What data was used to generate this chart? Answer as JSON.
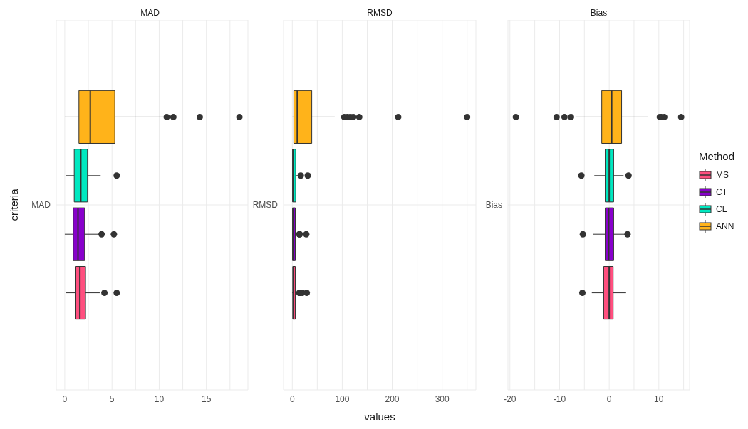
{
  "chart_data": [
    {
      "type": "box",
      "orientation": "horizontal",
      "title": "MAD",
      "ylabel": "criteria",
      "categories": [
        "MAD"
      ],
      "xlim": [
        -0.9,
        19.4
      ],
      "xticks": [
        0,
        {
          "value": 2.5,
          "label": null
        },
        5,
        {
          "value": 7.5,
          "label": null
        },
        10,
        {
          "value": 12.5,
          "label": null
        },
        15,
        {
          "value": 17.5,
          "label": null
        }
      ],
      "grid": true,
      "series": [
        {
          "color": "#ff4f7f",
          "boxes": [
            {
              "low": 0.1,
              "q1": 1.1,
              "median": 1.6,
              "q3": 2.2,
              "high": 3.7,
              "outliers": [
                4.2,
                5.5
              ]
            }
          ]
        },
        {
          "color": "#8800cc",
          "boxes": [
            {
              "low": 0,
              "q1": 0.9,
              "median": 1.4,
              "q3": 2.1,
              "high": 3.8,
              "outliers": [
                3.9,
                5.2
              ]
            }
          ]
        },
        {
          "color": "#00e8c0",
          "boxes": [
            {
              "low": 0.1,
              "q1": 1,
              "median": 1.7,
              "q3": 2.4,
              "high": 3.8,
              "outliers": [
                5.5
              ]
            }
          ]
        },
        {
          "color": "#ffb31a",
          "boxes": [
            {
              "low": 0,
              "q1": 1.5,
              "median": 2.7,
              "q3": 5.3,
              "high": 10.5,
              "outliers": [
                10.8,
                11.5,
                14.3,
                18.5
              ]
            }
          ]
        }
      ]
    },
    {
      "type": "box",
      "orientation": "horizontal",
      "title": "RMSD",
      "xlabel": "values",
      "categories": [
        "RMSD"
      ],
      "xlim": [
        -17.5,
        367.5
      ],
      "xticks": [
        0,
        {
          "value": 50,
          "label": null
        },
        100,
        {
          "value": 150,
          "label": null
        },
        200,
        {
          "value": 250,
          "label": null
        },
        300,
        {
          "value": 350,
          "label": null
        }
      ],
      "grid": true,
      "series": [
        {
          "color": "#ff4f7f",
          "boxes": [
            {
              "low": 0,
              "q1": 1,
              "median": 2,
              "q3": 6,
              "high": 10,
              "outliers": [
                14,
                16,
                20,
                29
              ]
            }
          ]
        },
        {
          "color": "#8800cc",
          "boxes": [
            {
              "low": 0,
              "q1": 0.5,
              "median": 2,
              "q3": 6,
              "high": 9,
              "outliers": [
                14,
                15,
                28
              ]
            }
          ]
        },
        {
          "color": "#00e8c0",
          "boxes": [
            {
              "low": 0,
              "q1": 0.5,
              "median": 2,
              "q3": 7,
              "high": 11,
              "outliers": [
                17,
                31
              ]
            }
          ]
        },
        {
          "color": "#ffb31a",
          "boxes": [
            {
              "low": 0,
              "q1": 3,
              "median": 10,
              "q3": 39,
              "high": 85,
              "outliers": [
                104,
                110,
                116,
                122,
                134,
                212,
                350
              ]
            }
          ]
        }
      ]
    },
    {
      "type": "box",
      "orientation": "horizontal",
      "title": "Bias",
      "categories": [
        "Bias"
      ],
      "xlim": [
        -20.4,
        16.2
      ],
      "xticks": [
        -20,
        {
          "value": -15,
          "label": null
        },
        -10,
        {
          "value": -5,
          "label": null
        },
        0,
        {
          "value": 5,
          "label": null
        },
        10,
        {
          "value": 15,
          "label": null
        }
      ],
      "grid": true,
      "legend": "right",
      "legend_title": "Method",
      "series": [
        {
          "name": "MS",
          "color": "#ff4f7f",
          "boxes": [
            {
              "low": -3.5,
              "q1": -1.1,
              "median": 0,
              "q3": 0.8,
              "high": 3.4,
              "outliers": [
                -5.4
              ]
            }
          ]
        },
        {
          "name": "CT",
          "color": "#8800cc",
          "boxes": [
            {
              "low": -3.2,
              "q1": -0.8,
              "median": -0.1,
              "q3": 0.9,
              "high": 3.2,
              "outliers": [
                -5.3,
                3.7
              ]
            }
          ]
        },
        {
          "name": "CL",
          "color": "#00e8c0",
          "boxes": [
            {
              "low": -3,
              "q1": -0.8,
              "median": 0,
              "q3": 0.9,
              "high": 2.9,
              "outliers": [
                -5.6,
                3.9
              ]
            }
          ]
        },
        {
          "name": "ANN",
          "color": "#ffb31a",
          "boxes": [
            {
              "low": -6.8,
              "q1": -1.5,
              "median": 0.5,
              "q3": 2.5,
              "high": 7.8,
              "outliers": [
                -18.8,
                -10.6,
                -9,
                -7.7,
                10.2,
                10.5,
                11.1,
                14.5
              ]
            }
          ]
        }
      ]
    }
  ]
}
